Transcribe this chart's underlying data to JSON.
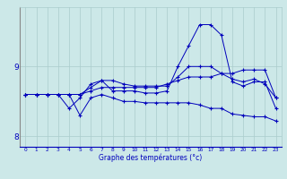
{
  "xlabel": "Graphe des températures (°c)",
  "background_color": "#cce8e8",
  "grid_color": "#aacccc",
  "line_color": "#0000bb",
  "hours": [
    0,
    1,
    2,
    3,
    4,
    5,
    6,
    7,
    8,
    9,
    10,
    11,
    12,
    13,
    14,
    15,
    16,
    17,
    18,
    19,
    20,
    21,
    22,
    23
  ],
  "series": {
    "line1": [
      8.6,
      8.6,
      8.6,
      8.6,
      8.6,
      8.6,
      8.65,
      8.7,
      8.7,
      8.7,
      8.7,
      8.7,
      8.7,
      8.75,
      8.8,
      8.85,
      8.85,
      8.85,
      8.9,
      8.9,
      8.95,
      8.95,
      8.95,
      8.55
    ],
    "line2": [
      8.6,
      8.6,
      8.6,
      8.6,
      8.6,
      8.6,
      8.7,
      8.8,
      8.8,
      8.75,
      8.72,
      8.72,
      8.72,
      8.72,
      8.85,
      9.0,
      9.0,
      9.0,
      8.9,
      8.82,
      8.78,
      8.82,
      8.75,
      8.55
    ],
    "line3": [
      8.6,
      8.6,
      8.6,
      8.6,
      8.4,
      8.55,
      8.75,
      8.8,
      8.65,
      8.65,
      8.65,
      8.62,
      8.62,
      8.65,
      9.0,
      9.3,
      9.6,
      9.6,
      9.45,
      8.78,
      8.72,
      8.78,
      8.78,
      8.4
    ],
    "line4": [
      8.6,
      8.6,
      8.6,
      8.6,
      8.6,
      8.3,
      8.55,
      8.6,
      8.55,
      8.5,
      8.5,
      8.48,
      8.48,
      8.48,
      8.48,
      8.48,
      8.45,
      8.4,
      8.4,
      8.32,
      8.3,
      8.28,
      8.28,
      8.22
    ]
  },
  "ylim": [
    7.85,
    9.85
  ],
  "yticks": [
    8,
    9
  ],
  "xlim": [
    -0.5,
    23.5
  ],
  "xtick_labels": [
    "0",
    "1",
    "2",
    "3",
    "4",
    "5",
    "6",
    "7",
    "8",
    "9",
    "10",
    "11",
    "12",
    "13",
    "14",
    "15",
    "16",
    "17",
    "18",
    "19",
    "20",
    "21",
    "22",
    "23"
  ]
}
